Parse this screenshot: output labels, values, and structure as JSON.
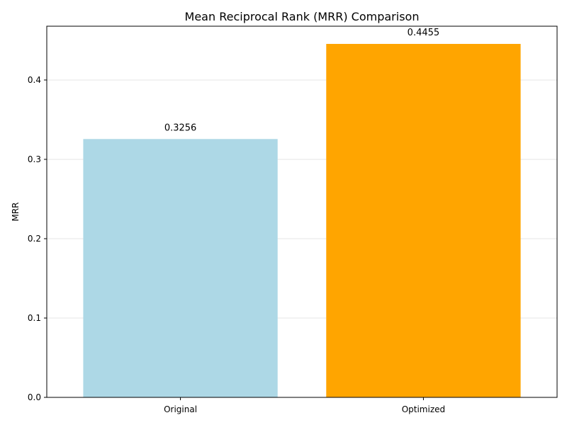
{
  "chart_data": {
    "type": "bar",
    "title": "Mean Reciprocal Rank (MRR) Comparison",
    "xlabel": "",
    "ylabel": "MRR",
    "categories": [
      "Original",
      "Optimized"
    ],
    "values": [
      0.3256,
      0.4455
    ],
    "value_labels": [
      "0.3256",
      "0.4455"
    ],
    "colors": [
      "#add8e6",
      "#ffa500"
    ],
    "ylim": [
      0,
      0.4678
    ],
    "yticks": [
      0.0,
      0.1,
      0.2,
      0.3,
      0.4
    ],
    "ytick_labels": [
      "0.0",
      "0.1",
      "0.2",
      "0.3",
      "0.4"
    ],
    "grid": true,
    "grid_axis": "y",
    "legend": "none"
  }
}
